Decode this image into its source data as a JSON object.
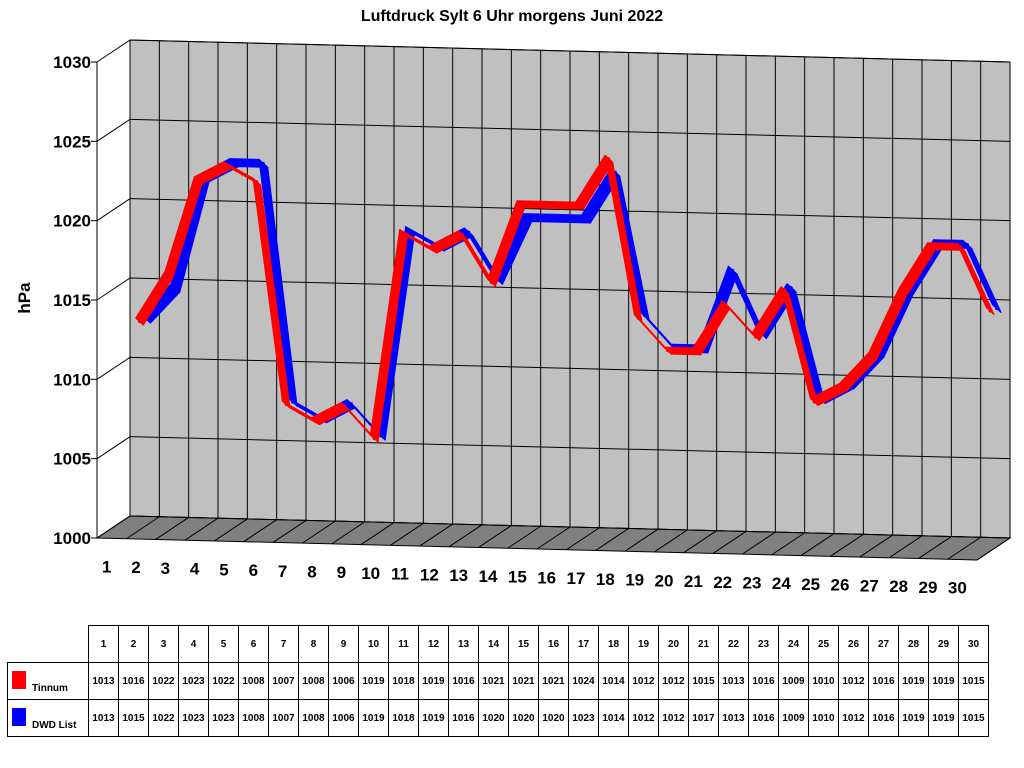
{
  "chart_data": {
    "type": "line",
    "title": "Luftdruck Sylt 6 Uhr morgens Juni 2022",
    "ylabel": "hPa",
    "xlabel": "",
    "ylim": [
      1000,
      1030
    ],
    "yticks": [
      "1000",
      "1005",
      "1010",
      "1015",
      "1020",
      "1025",
      "1030"
    ],
    "categories": [
      "1",
      "2",
      "3",
      "4",
      "5",
      "6",
      "7",
      "8",
      "9",
      "10",
      "11",
      "12",
      "13",
      "14",
      "15",
      "16",
      "17",
      "18",
      "19",
      "20",
      "21",
      "22",
      "23",
      "24",
      "25",
      "26",
      "27",
      "28",
      "29",
      "30"
    ],
    "series": [
      {
        "name": "Tinnum",
        "color": "#ff0000",
        "values": [
          1013,
          1016,
          1022,
          1023,
          1022,
          1008,
          1007,
          1008,
          1006,
          1019,
          1018,
          1019,
          1016,
          1021,
          1021,
          1021,
          1024,
          1014,
          1012,
          1012,
          1015,
          1013,
          1016,
          1009,
          1010,
          1012,
          1016,
          1019,
          1019,
          1015
        ]
      },
      {
        "name": "DWD List",
        "color": "#0000ff",
        "values": [
          1013,
          1015,
          1022,
          1023,
          1023,
          1008,
          1007,
          1008,
          1006,
          1019,
          1018,
          1019,
          1016,
          1020,
          1020,
          1020,
          1023,
          1014,
          1012,
          1012,
          1017,
          1013,
          1016,
          1009,
          1010,
          1012,
          1016,
          1019,
          1019,
          1015
        ]
      }
    ],
    "grid": true,
    "legend": "data-table-bottom"
  }
}
